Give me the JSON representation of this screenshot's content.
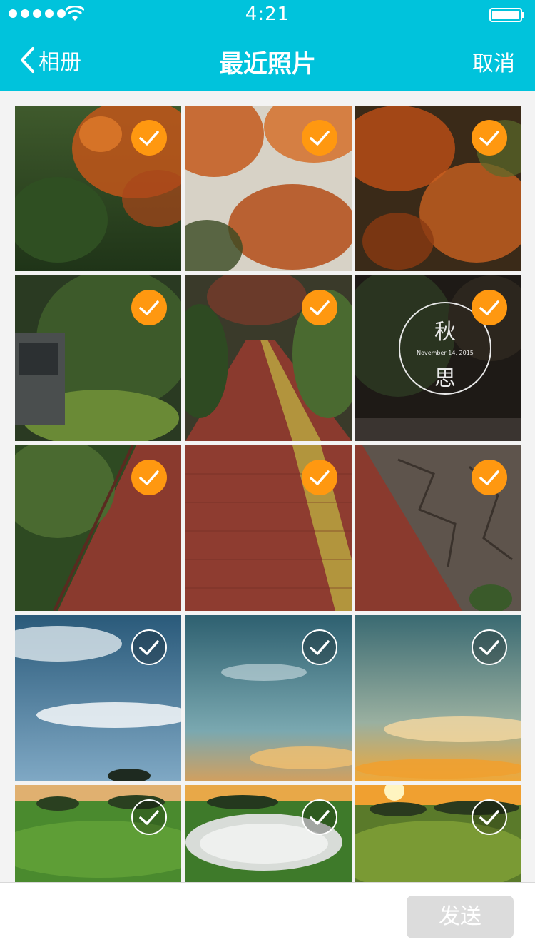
{
  "status": {
    "time": "4:21"
  },
  "nav": {
    "back_label": "相册",
    "title": "最近照片",
    "cancel_label": "取消"
  },
  "photos": [
    {
      "name": "autumn-leaves-1",
      "selected": true
    },
    {
      "name": "autumn-leaves-2",
      "selected": true
    },
    {
      "name": "autumn-leaves-3",
      "selected": true
    },
    {
      "name": "hedge-car",
      "selected": true
    },
    {
      "name": "brick-path",
      "selected": true
    },
    {
      "name": "qiusi-badge",
      "selected": true,
      "badge_top": "秋",
      "badge_date": "November 14, 2015",
      "badge_bottom": "思"
    },
    {
      "name": "path-hedge",
      "selected": true
    },
    {
      "name": "path-yellow-line",
      "selected": true
    },
    {
      "name": "stone-wall-path",
      "selected": true
    },
    {
      "name": "sky-clouds-1",
      "selected": false
    },
    {
      "name": "sky-clouds-2",
      "selected": false
    },
    {
      "name": "sky-sunset",
      "selected": false
    },
    {
      "name": "golf-green",
      "selected": false
    },
    {
      "name": "golf-bunker",
      "selected": false
    },
    {
      "name": "golf-sunrise",
      "selected": false
    }
  ],
  "bottom": {
    "send_label": "发送"
  },
  "colors": {
    "accent": "#00c3dc",
    "selected": "#ff9810",
    "send_disabled": "#dcdcdc"
  }
}
